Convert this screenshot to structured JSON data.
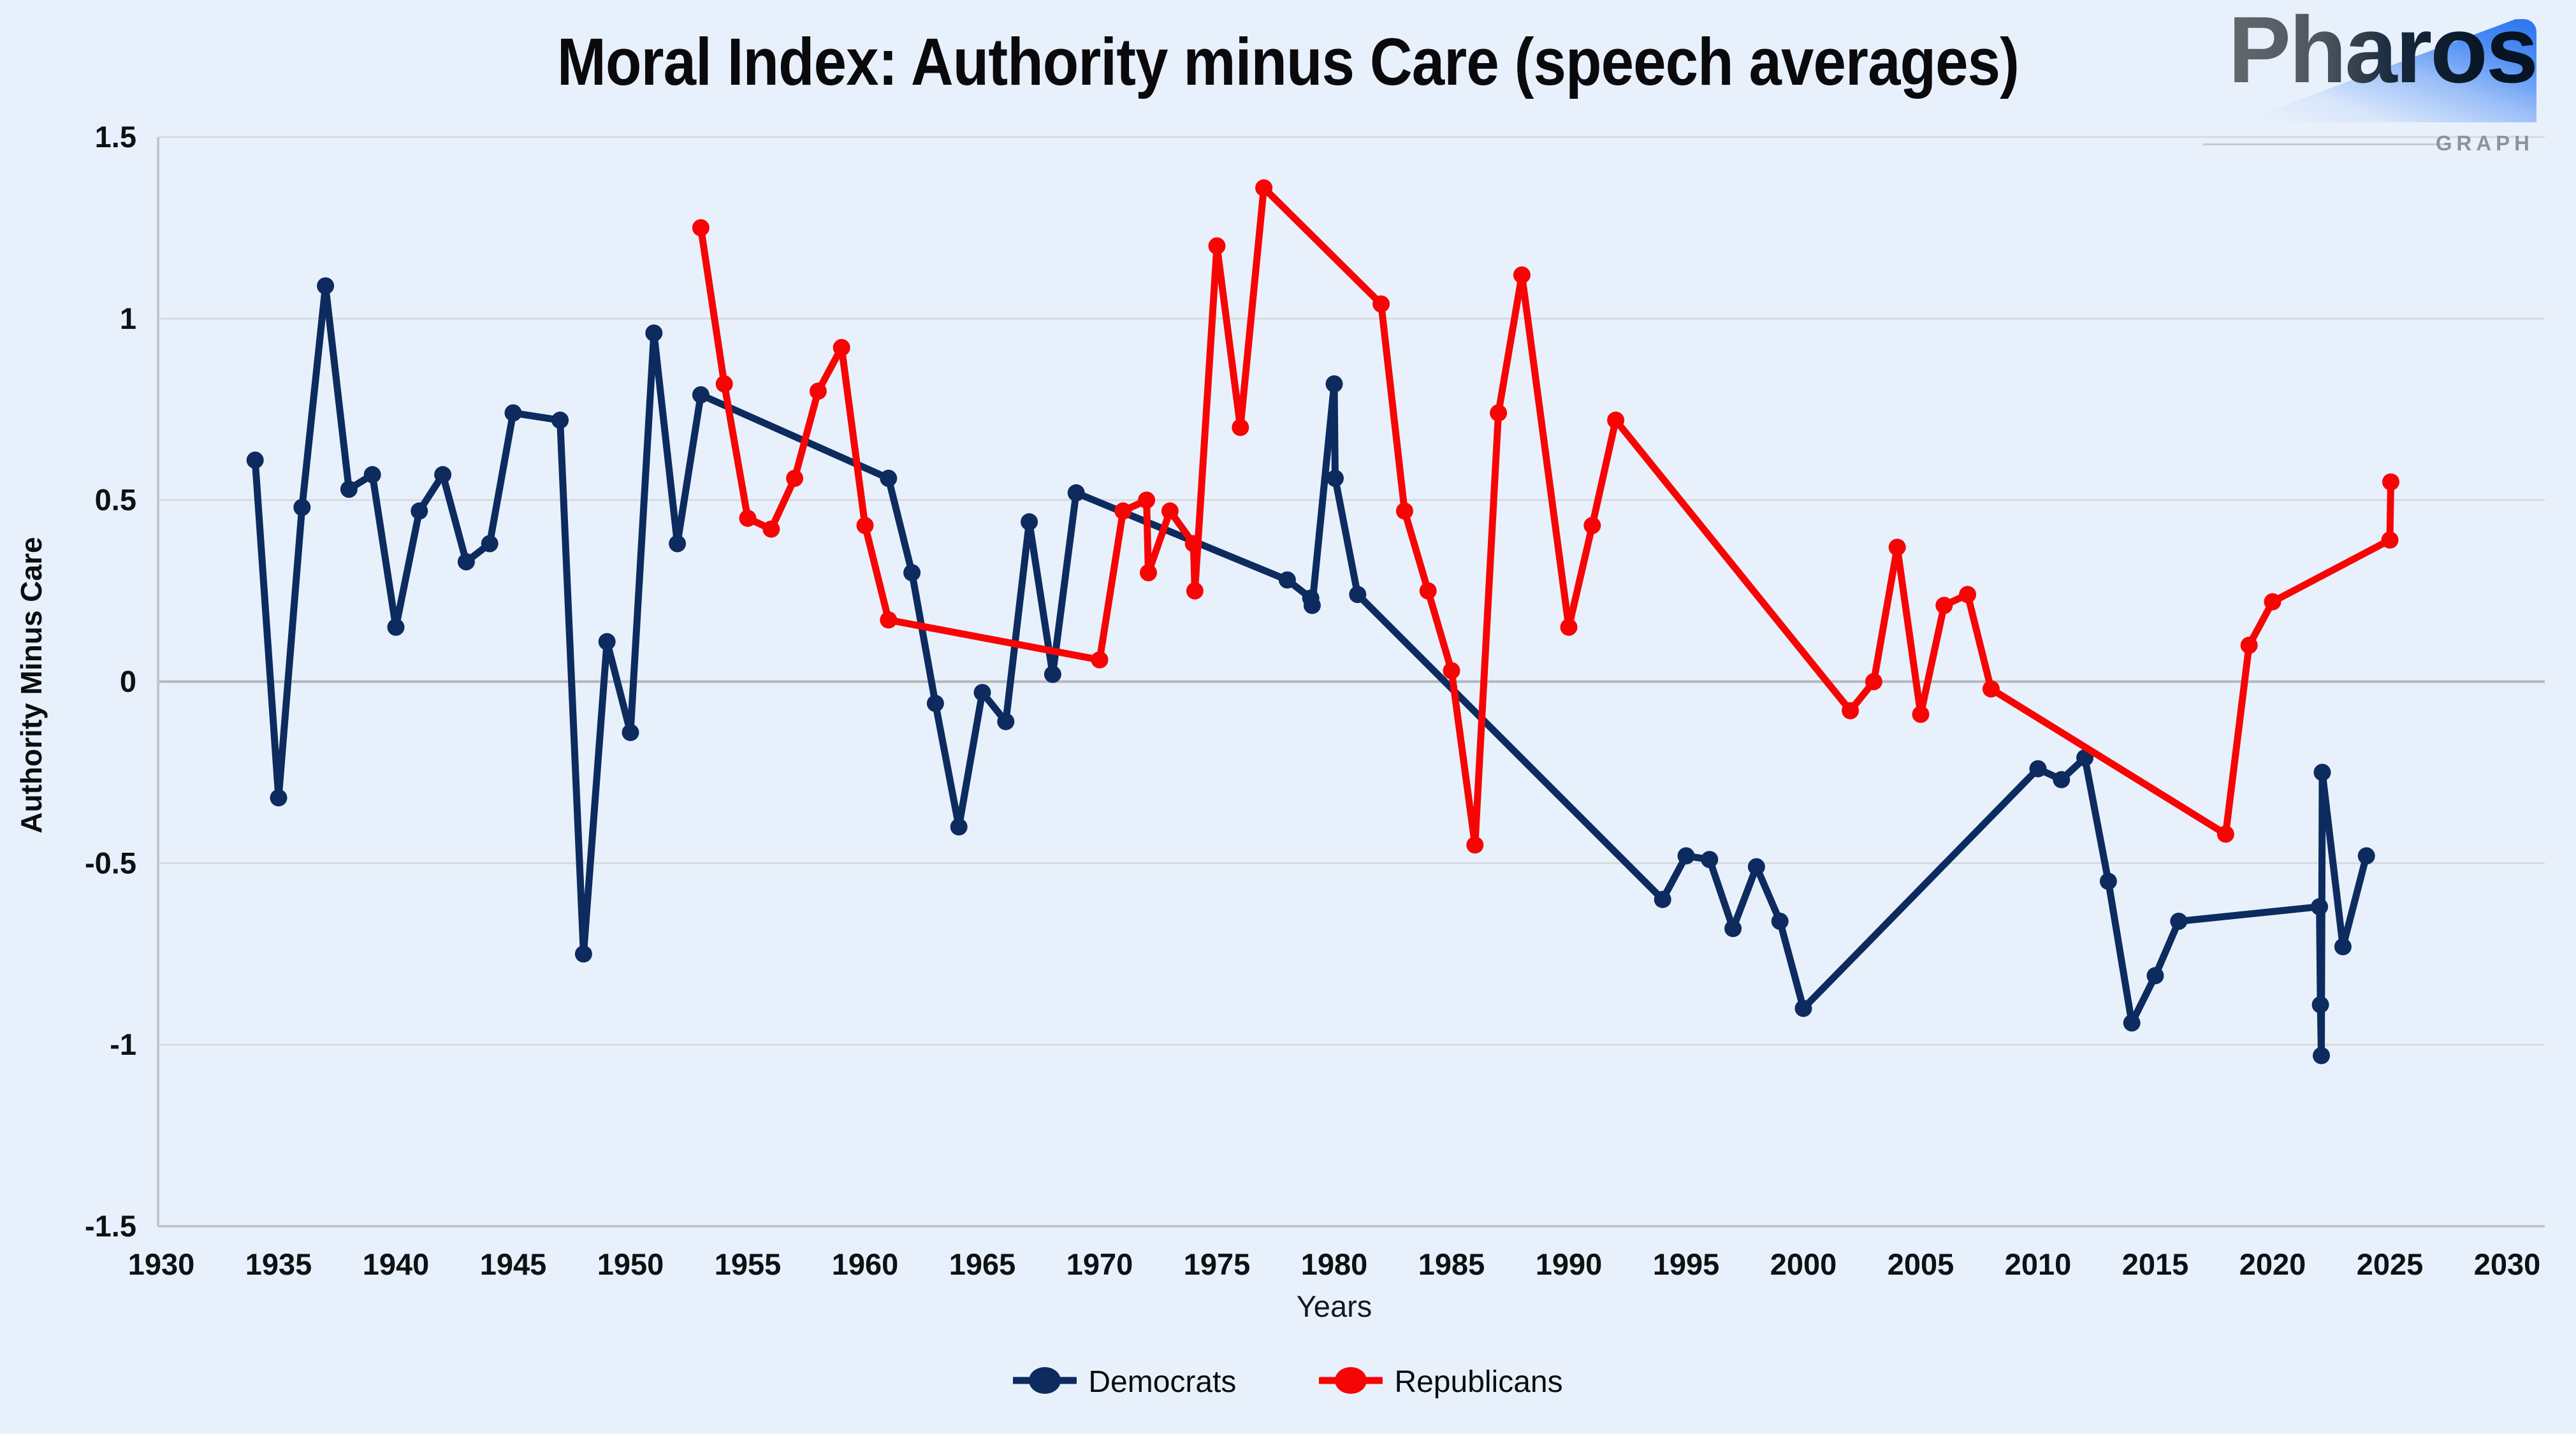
{
  "title": "Moral Index: Authority minus Care (speech averages)",
  "logo": {
    "brand": "Pharos",
    "sub": "GRAPH"
  },
  "legend": {
    "items": [
      "Democrats",
      "Republicans"
    ]
  },
  "chart_data": {
    "type": "line",
    "title": "Moral Index: Authority minus Care (speech averages)",
    "xlabel": "Years",
    "ylabel": "Authority Minus Care",
    "xlim": [
      1930,
      2030
    ],
    "ylim": [
      -1.5,
      1.5
    ],
    "x_ticks": [
      1930,
      1935,
      1940,
      1945,
      1950,
      1955,
      1960,
      1965,
      1970,
      1975,
      1980,
      1985,
      1990,
      1995,
      2000,
      2005,
      2010,
      2015,
      2020,
      2025,
      2030
    ],
    "y_tick_values": [
      1.5,
      1,
      0.5,
      0,
      -0.5,
      -1,
      -1.5
    ],
    "y_tick_labels": [
      "1.5",
      "1",
      "0.5",
      "0",
      "-0.5",
      "-1",
      "-1.5"
    ],
    "grid": "horizontal",
    "legend_position": "bottom-center",
    "background_color": "#e8f1fb",
    "gridline_color": "#d7dadd",
    "zero_line_color": "#b4b6b8",
    "axis_line_color": "#c2c6c9",
    "marker_style": "filled-circle",
    "series": [
      {
        "name": "Democrats",
        "color": "#0d2b5e",
        "points": [
          [
            1934,
            0.61
          ],
          [
            1935,
            -0.32
          ],
          [
            1936,
            0.48
          ],
          [
            1937,
            1.09
          ],
          [
            1938,
            0.53
          ],
          [
            1939,
            0.57
          ],
          [
            1940,
            0.15
          ],
          [
            1941,
            0.47
          ],
          [
            1942,
            0.57
          ],
          [
            1943,
            0.33
          ],
          [
            1944,
            0.38
          ],
          [
            1945,
            0.74
          ],
          [
            1947,
            0.72
          ],
          [
            1948,
            -0.75
          ],
          [
            1949,
            0.11
          ],
          [
            1950,
            -0.14
          ],
          [
            1951,
            0.96
          ],
          [
            1952,
            0.38
          ],
          [
            1953,
            0.79
          ],
          [
            1961,
            0.56
          ],
          [
            1962,
            0.3
          ],
          [
            1963,
            -0.06
          ],
          [
            1964,
            -0.4
          ],
          [
            1965,
            -0.03
          ],
          [
            1966,
            -0.11
          ],
          [
            1967,
            0.44
          ],
          [
            1968,
            0.02
          ],
          [
            1969,
            0.52
          ],
          [
            1978,
            0.28
          ],
          [
            1979,
            0.23
          ],
          [
            1979.06,
            0.21
          ],
          [
            1980,
            0.82
          ],
          [
            1980.04,
            0.56
          ],
          [
            1981,
            0.24
          ],
          [
            1994,
            -0.6
          ],
          [
            1995,
            -0.48
          ],
          [
            1996,
            -0.49
          ],
          [
            1997,
            -0.68
          ],
          [
            1998,
            -0.51
          ],
          [
            1999,
            -0.66
          ],
          [
            2000,
            -0.9
          ],
          [
            2010,
            -0.24
          ],
          [
            2011,
            -0.27
          ],
          [
            2012,
            -0.21
          ],
          [
            2013,
            -0.55
          ],
          [
            2014,
            -0.94
          ],
          [
            2015,
            -0.81
          ],
          [
            2016,
            -0.66
          ],
          [
            2022,
            -0.62
          ],
          [
            2022.04,
            -0.89
          ],
          [
            2022.08,
            -1.03
          ],
          [
            2022.12,
            -0.25
          ],
          [
            2023,
            -0.73
          ],
          [
            2024,
            -0.48
          ]
        ]
      },
      {
        "name": "Republicans",
        "color": "#f70505",
        "points": [
          [
            1953,
            1.25
          ],
          [
            1954,
            0.82
          ],
          [
            1955,
            0.45
          ],
          [
            1956,
            0.42
          ],
          [
            1957,
            0.56
          ],
          [
            1958,
            0.8
          ],
          [
            1959,
            0.92
          ],
          [
            1960,
            0.43
          ],
          [
            1961,
            0.17
          ],
          [
            1970,
            0.06
          ],
          [
            1971,
            0.47
          ],
          [
            1972,
            0.5
          ],
          [
            1972.08,
            0.3
          ],
          [
            1973,
            0.47
          ],
          [
            1974,
            0.38
          ],
          [
            1974.06,
            0.25
          ],
          [
            1975,
            1.2
          ],
          [
            1976,
            0.7
          ],
          [
            1977,
            1.36
          ],
          [
            1982,
            1.04
          ],
          [
            1983,
            0.47
          ],
          [
            1984,
            0.25
          ],
          [
            1985,
            0.03
          ],
          [
            1986,
            -0.45
          ],
          [
            1987,
            0.74
          ],
          [
            1988,
            1.12
          ],
          [
            1990,
            0.15
          ],
          [
            1991,
            0.43
          ],
          [
            1992,
            0.72
          ],
          [
            2002,
            -0.08
          ],
          [
            2003,
            0.0
          ],
          [
            2004,
            0.37
          ],
          [
            2005,
            -0.09
          ],
          [
            2006,
            0.21
          ],
          [
            2007,
            0.24
          ],
          [
            2008,
            -0.02
          ],
          [
            2018,
            -0.42
          ],
          [
            2019,
            0.1
          ],
          [
            2020,
            0.22
          ],
          [
            2025,
            0.39
          ],
          [
            2025.04,
            0.55
          ]
        ]
      }
    ]
  }
}
